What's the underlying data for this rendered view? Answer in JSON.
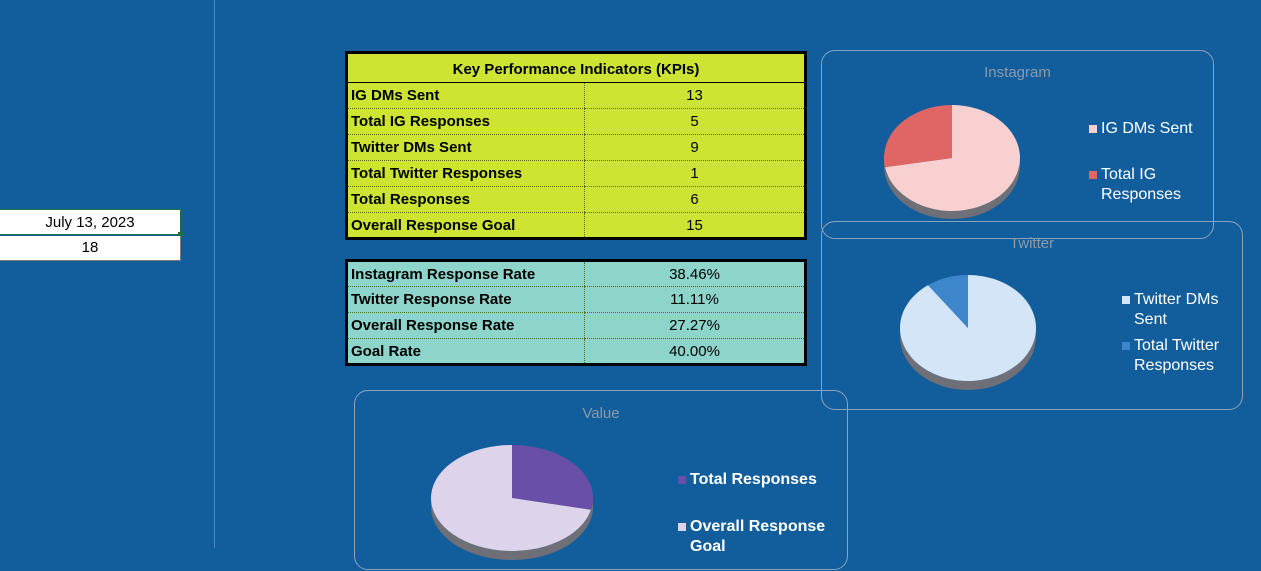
{
  "sheet": {
    "date_cell": "July 13, 2023",
    "number_cell": "18"
  },
  "kpi_table": {
    "title": "Key Performance Indicators (KPIs)",
    "rows": [
      {
        "label": "IG DMs Sent",
        "value": "13"
      },
      {
        "label": "Total IG Responses",
        "value": "5"
      },
      {
        "label": "Twitter DMs Sent",
        "value": "9"
      },
      {
        "label": "Total Twitter Responses",
        "value": "1"
      },
      {
        "label": "Total Responses",
        "value": "6"
      },
      {
        "label": "Overall Response Goal",
        "value": "15"
      }
    ]
  },
  "rate_table": {
    "rows": [
      {
        "label": "Instagram Response Rate",
        "value": "38.46%"
      },
      {
        "label": "Twitter Response Rate",
        "value": "11.11%"
      },
      {
        "label": "Overall Response Rate",
        "value": "27.27%"
      },
      {
        "label": "Goal Rate",
        "value": "40.00%"
      }
    ]
  },
  "chart_data": [
    {
      "type": "pie",
      "title": "Instagram",
      "categories": [
        "IG DMs Sent",
        "Total IG Responses"
      ],
      "values": [
        13,
        5
      ],
      "colors": [
        "#f8d0d0",
        "#e06666"
      ]
    },
    {
      "type": "pie",
      "title": "Twitter",
      "categories": [
        "Twitter DMs Sent",
        "Total Twitter Responses"
      ],
      "values": [
        9,
        1
      ],
      "colors": [
        "#d3e5f6",
        "#3d86cc"
      ]
    },
    {
      "type": "pie",
      "title": "Value",
      "categories": [
        "Total Responses",
        "Overall Response Goal"
      ],
      "values": [
        6,
        15
      ],
      "colors": [
        "#6a4fa8",
        "#ddd4ec"
      ]
    }
  ]
}
